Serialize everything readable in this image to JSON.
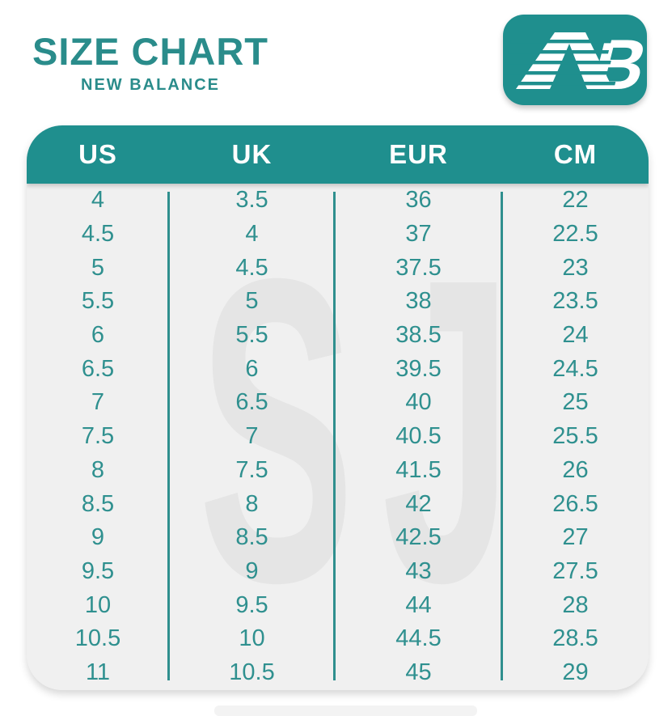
{
  "colors": {
    "teal": "#1f8f8e",
    "title_teal": "#2a8c8b",
    "value_teal": "#2f908f",
    "card_bg": "#f0f0f0",
    "watermark_gray": "#e5e5e5",
    "header_text": "#ffffff",
    "page_bg": "#ffffff"
  },
  "header": {
    "title": "SIZE CHART",
    "subtitle": "NEW BALANCE",
    "logo_mark_letter": "B"
  },
  "watermark_text": "SJ",
  "chart_data": {
    "type": "table",
    "title": "SIZE CHART",
    "subtitle": "NEW BALANCE",
    "columns": [
      "US",
      "UK",
      "EUR",
      "CM"
    ],
    "rows": [
      [
        "4",
        "3.5",
        "36",
        "22"
      ],
      [
        "4.5",
        "4",
        "37",
        "22.5"
      ],
      [
        "5",
        "4.5",
        "37.5",
        "23"
      ],
      [
        "5.5",
        "5",
        "38",
        "23.5"
      ],
      [
        "6",
        "5.5",
        "38.5",
        "24"
      ],
      [
        "6.5",
        "6",
        "39.5",
        "24.5"
      ],
      [
        "7",
        "6.5",
        "40",
        "25"
      ],
      [
        "7.5",
        "7",
        "40.5",
        "25.5"
      ],
      [
        "8",
        "7.5",
        "41.5",
        "26"
      ],
      [
        "8.5",
        "8",
        "42",
        "26.5"
      ],
      [
        "9",
        "8.5",
        "42.5",
        "27"
      ],
      [
        "9.5",
        "9",
        "43",
        "27.5"
      ],
      [
        "10",
        "9.5",
        "44",
        "28"
      ],
      [
        "10.5",
        "10",
        "44.5",
        "28.5"
      ],
      [
        "11",
        "10.5",
        "45",
        "29"
      ]
    ]
  }
}
